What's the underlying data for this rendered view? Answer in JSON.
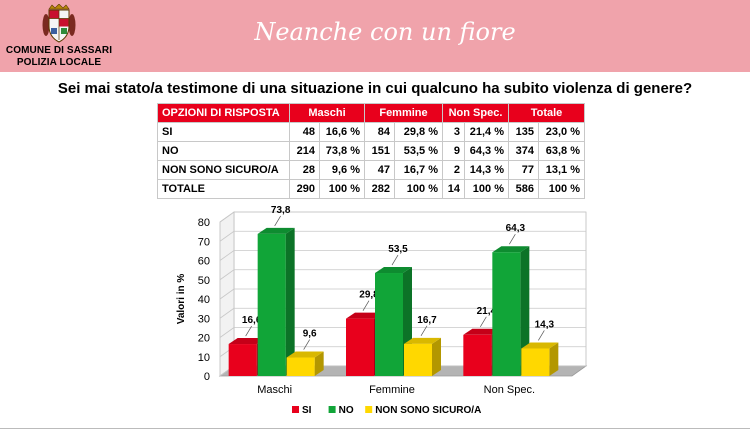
{
  "header": {
    "org_line1": "COMUNE DI SASSARI",
    "org_line2": "POLIZIA LOCALE",
    "brand": "Neanche con un fiore",
    "crest_icon": "city-crest-icon",
    "colors": {
      "banner": "#f0a3ab",
      "table_head": "#e8001c"
    }
  },
  "question": "Sei mai stato/a testimone di una situazione in cui qualcuno ha subito violenza di genere?",
  "table": {
    "headers": [
      "OPZIONI DI RISPOSTA",
      "Maschi",
      "Femmine",
      "Non Spec.",
      "Totale"
    ],
    "rows": [
      [
        "SI",
        "48",
        "16,6 %",
        "84",
        "29,8 %",
        "3",
        "21,4 %",
        "135",
        "23,0 %"
      ],
      [
        "NO",
        "214",
        "73,8 %",
        "151",
        "53,5 %",
        "9",
        "64,3 %",
        "374",
        "63,8 %"
      ],
      [
        "NON SONO SICURO/A",
        "28",
        "9,6 %",
        "47",
        "16,7 %",
        "2",
        "14,3 %",
        "77",
        "13,1 %"
      ],
      [
        "TOTALE",
        "290",
        "100 %",
        "282",
        "100 %",
        "14",
        "100 %",
        "586",
        "100 %"
      ]
    ]
  },
  "chart_data": {
    "type": "bar",
    "categories": [
      "Maschi",
      "Femmine",
      "Non Spec."
    ],
    "series": [
      {
        "name": "SI",
        "values": [
          16.6,
          29.8,
          21.4
        ],
        "labels": [
          "16,6",
          "29,8",
          "21,4"
        ],
        "color": "#e8001c"
      },
      {
        "name": "NO",
        "values": [
          73.8,
          53.5,
          64.3
        ],
        "labels": [
          "73,8",
          "53,5",
          "64,3"
        ],
        "color": "#11a538"
      },
      {
        "name": "NON SONO SICURO/A",
        "values": [
          9.6,
          16.7,
          14.3
        ],
        "labels": [
          "9,6",
          "16,7",
          "14,3"
        ],
        "color": "#ffd800"
      }
    ],
    "ylabel": "Valori in %",
    "ylim": [
      0,
      80
    ],
    "yticks": [
      0,
      10,
      20,
      30,
      40,
      50,
      60,
      70,
      80
    ],
    "grid": true,
    "legend": "bottom"
  }
}
